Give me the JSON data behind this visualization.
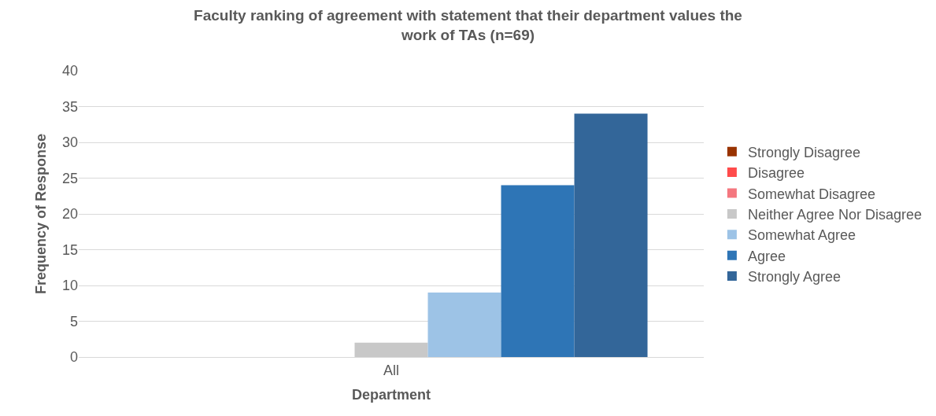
{
  "chart_data": {
    "type": "bar",
    "title": "Faculty ranking of agreement with statement that their department values the work of TAs (n=69)",
    "xlabel": "Department",
    "ylabel": "Frequency of Response",
    "categories": [
      "All"
    ],
    "series": [
      {
        "name": "Strongly Disagree",
        "color": "#993300",
        "values": [
          0
        ]
      },
      {
        "name": "Disagree",
        "color": "#ff4b4b",
        "values": [
          0
        ]
      },
      {
        "name": "Somewhat Disagree",
        "color": "#f4777f",
        "values": [
          0
        ]
      },
      {
        "name": "Neither Agree Nor Disagree",
        "color": "#c8c8c8",
        "values": [
          2
        ]
      },
      {
        "name": "Somewhat Agree",
        "color": "#9dc3e6",
        "values": [
          9
        ]
      },
      {
        "name": "Agree",
        "color": "#2e75b6",
        "values": [
          24
        ]
      },
      {
        "name": "Strongly Agree",
        "color": "#336699",
        "values": [
          34
        ]
      }
    ],
    "ylim": [
      0,
      40
    ],
    "yticks": [
      0,
      5,
      10,
      15,
      20,
      25,
      30,
      35,
      40
    ],
    "grid": "y",
    "legend": "right"
  }
}
